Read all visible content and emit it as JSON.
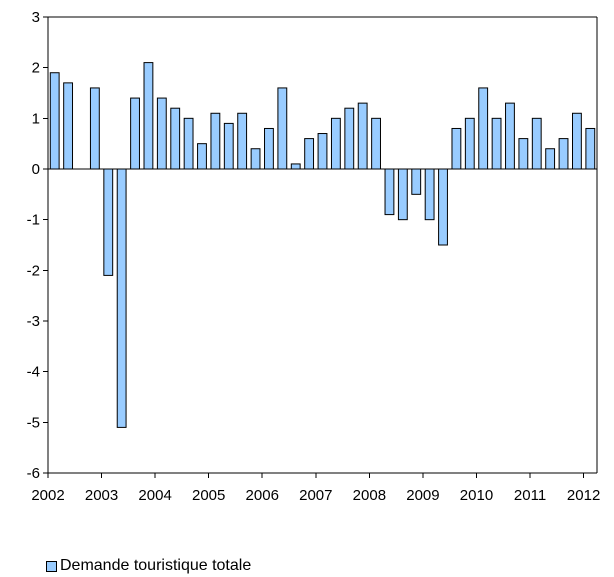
{
  "colors": {
    "bar_fill": "#99CCFF",
    "bar_stroke": "#000000",
    "axis": "#000000"
  },
  "chart_data": {
    "type": "bar",
    "title": "",
    "xlabel": "",
    "ylabel": "",
    "ylim": [
      -6,
      3
    ],
    "yticks": [
      "3",
      "2",
      "1",
      "0",
      "-1",
      "-2",
      "-3",
      "-4",
      "-5",
      "-6"
    ],
    "grid": false,
    "legend_position": "bottom-left",
    "x_tick_labels": [
      "2002",
      "2003",
      "2004",
      "2005",
      "2006",
      "2007",
      "2008",
      "2009",
      "2010",
      "2011",
      "2012"
    ],
    "series": [
      {
        "name": "Demande touristique totale",
        "values": [
          1.9,
          1.7,
          null,
          1.6,
          -2.1,
          -5.1,
          1.4,
          2.1,
          1.4,
          1.2,
          1.0,
          0.5,
          1.1,
          0.9,
          1.1,
          0.4,
          0.8,
          1.6,
          0.1,
          0.6,
          0.7,
          1.0,
          1.2,
          1.3,
          1.0,
          -0.9,
          -1.0,
          -0.5,
          -1.0,
          -1.5,
          0.8,
          1.0,
          1.6,
          1.0,
          1.3,
          0.6,
          1.0,
          0.4,
          0.6,
          1.1,
          0.8
        ]
      }
    ]
  },
  "legend": {
    "label": "Demande touristique totale"
  }
}
